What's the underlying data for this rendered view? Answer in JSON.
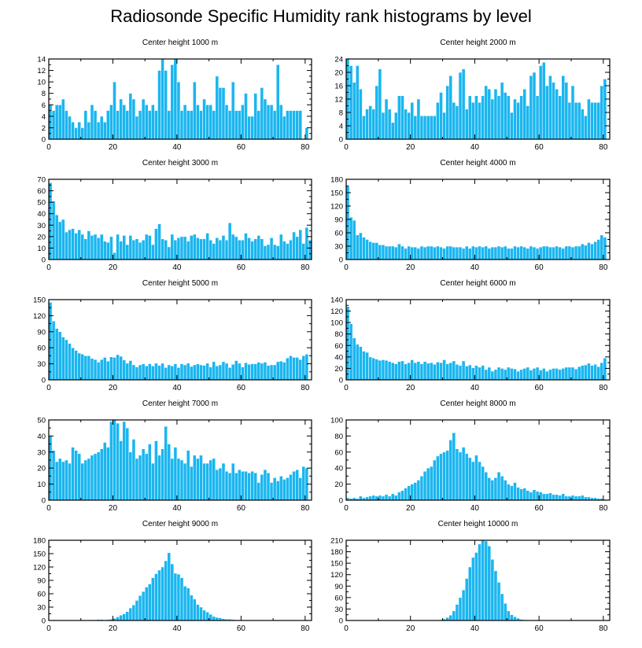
{
  "title": "Radiosonde Specific Humidity rank histograms by level",
  "colors": {
    "bar": "#1ab6f0",
    "bar_edge": "#ffffff",
    "axis": "#000000"
  },
  "chart_data": [
    {
      "type": "bar",
      "title": "Center height 1000 m",
      "xlabel": "",
      "ylabel": "",
      "xlim": [
        0,
        82
      ],
      "ylim": [
        0,
        14
      ],
      "xticks": [
        0,
        20,
        40,
        60,
        80
      ],
      "yticks": [
        0,
        2,
        4,
        6,
        8,
        10,
        12,
        14
      ],
      "values": [
        6,
        5,
        6,
        6,
        7,
        5,
        4,
        3,
        2,
        3,
        2,
        5,
        3,
        6,
        5,
        3,
        4,
        3,
        5,
        6,
        10,
        5,
        7,
        6,
        5,
        8,
        7,
        4,
        5,
        7,
        6,
        5,
        6,
        5,
        12,
        14,
        12,
        5,
        13,
        14,
        10,
        5,
        6,
        5,
        5,
        10,
        6,
        5,
        7,
        6,
        6,
        5,
        11,
        9,
        9,
        6,
        5,
        10,
        5,
        5,
        6,
        8,
        4,
        4,
        8,
        5,
        9,
        7,
        6,
        6,
        5,
        13,
        6,
        4,
        5,
        5,
        5,
        5,
        5,
        0,
        2
      ]
    },
    {
      "type": "bar",
      "title": "Center height 2000 m",
      "xlabel": "",
      "ylabel": "",
      "xlim": [
        0,
        82
      ],
      "ylim": [
        0,
        24
      ],
      "xticks": [
        0,
        20,
        40,
        60,
        80
      ],
      "yticks": [
        0,
        4,
        8,
        12,
        16,
        20,
        24
      ],
      "values": [
        24,
        22,
        17,
        22,
        15,
        7,
        9,
        10,
        9,
        16,
        21,
        8,
        12,
        9,
        5,
        8,
        13,
        13,
        9,
        8,
        11,
        7,
        12,
        7,
        7,
        7,
        7,
        7,
        11,
        14,
        8,
        16,
        19,
        11,
        10,
        20,
        21,
        9,
        13,
        11,
        13,
        11,
        13,
        16,
        15,
        12,
        15,
        13,
        17,
        14,
        13,
        8,
        12,
        11,
        13,
        15,
        10,
        19,
        20,
        13,
        22,
        23,
        16,
        19,
        17,
        15,
        13,
        19,
        17,
        11,
        16,
        11,
        11,
        9,
        7,
        12,
        11,
        11,
        11,
        16,
        18
      ]
    },
    {
      "type": "bar",
      "title": "Center height 3000 m",
      "xlabel": "",
      "ylabel": "",
      "xlim": [
        0,
        82
      ],
      "ylim": [
        0,
        70
      ],
      "xticks": [
        0,
        20,
        40,
        60,
        80
      ],
      "yticks": [
        0,
        10,
        20,
        30,
        40,
        50,
        60,
        70
      ],
      "values": [
        67,
        51,
        39,
        33,
        35,
        24,
        26,
        27,
        23,
        26,
        22,
        18,
        25,
        21,
        22,
        19,
        22,
        16,
        15,
        20,
        6,
        22,
        16,
        21,
        13,
        21,
        17,
        18,
        15,
        17,
        22,
        21,
        13,
        27,
        31,
        18,
        17,
        11,
        22,
        17,
        19,
        20,
        20,
        16,
        21,
        22,
        19,
        18,
        18,
        23,
        17,
        14,
        19,
        17,
        21,
        17,
        32,
        22,
        20,
        17,
        17,
        23,
        19,
        16,
        18,
        21,
        18,
        12,
        13,
        19,
        13,
        12,
        22,
        16,
        14,
        17,
        24,
        20,
        26,
        14,
        28,
        17
      ]
    },
    {
      "type": "bar",
      "title": "Center height 4000 m",
      "xlabel": "",
      "ylabel": "",
      "xlim": [
        0,
        82
      ],
      "ylim": [
        0,
        180
      ],
      "xticks": [
        0,
        20,
        40,
        60,
        80
      ],
      "yticks": [
        0,
        30,
        60,
        90,
        120,
        150,
        180
      ],
      "values": [
        165,
        95,
        88,
        55,
        60,
        50,
        45,
        40,
        38,
        38,
        33,
        33,
        30,
        30,
        30,
        28,
        35,
        30,
        25,
        30,
        28,
        28,
        25,
        30,
        28,
        30,
        30,
        28,
        30,
        28,
        25,
        30,
        30,
        28,
        28,
        28,
        25,
        30,
        25,
        30,
        28,
        30,
        28,
        30,
        25,
        28,
        28,
        30,
        28,
        30,
        25,
        25,
        30,
        28,
        30,
        28,
        25,
        30,
        28,
        25,
        28,
        30,
        30,
        28,
        28,
        30,
        28,
        25,
        30,
        30,
        28,
        30,
        30,
        35,
        32,
        38,
        35,
        40,
        45,
        55,
        50
      ]
    },
    {
      "type": "bar",
      "title": "Center height 5000 m",
      "xlabel": "",
      "ylabel": "",
      "xlim": [
        0,
        82
      ],
      "ylim": [
        0,
        150
      ],
      "xticks": [
        0,
        20,
        40,
        60,
        80
      ],
      "yticks": [
        0,
        30,
        60,
        90,
        120,
        150
      ],
      "values": [
        145,
        110,
        96,
        90,
        80,
        75,
        68,
        60,
        55,
        50,
        48,
        45,
        45,
        40,
        38,
        33,
        38,
        42,
        35,
        43,
        42,
        47,
        44,
        37,
        31,
        36,
        28,
        24,
        28,
        30,
        26,
        30,
        26,
        31,
        27,
        31,
        23,
        28,
        26,
        30,
        23,
        30,
        28,
        31,
        25,
        28,
        30,
        28,
        27,
        31,
        24,
        34,
        26,
        28,
        34,
        31,
        23,
        29,
        36,
        31,
        24,
        32,
        29,
        30,
        30,
        33,
        31,
        33,
        27,
        28,
        28,
        34,
        35,
        33,
        41,
        45,
        42,
        42,
        38,
        45,
        48
      ]
    },
    {
      "type": "bar",
      "title": "Center height 6000 m",
      "xlabel": "",
      "ylabel": "",
      "xlim": [
        0,
        82
      ],
      "ylim": [
        0,
        140
      ],
      "xticks": [
        0,
        20,
        40,
        60,
        80
      ],
      "yticks": [
        0,
        20,
        40,
        60,
        80,
        100,
        120,
        140
      ],
      "values": [
        128,
        98,
        73,
        62,
        58,
        50,
        48,
        40,
        38,
        36,
        34,
        35,
        34,
        32,
        30,
        28,
        32,
        33,
        28,
        30,
        35,
        30,
        32,
        28,
        32,
        29,
        30,
        27,
        31,
        30,
        35,
        28,
        30,
        33,
        27,
        25,
        33,
        24,
        26,
        21,
        25,
        22,
        25,
        18,
        22,
        15,
        18,
        22,
        20,
        18,
        22,
        20,
        19,
        15,
        18,
        20,
        22,
        17,
        20,
        22,
        17,
        20,
        15,
        18,
        20,
        20,
        18,
        20,
        22,
        22,
        22,
        19,
        23,
        25,
        26,
        29,
        25,
        27,
        23,
        30,
        38
      ]
    },
    {
      "type": "bar",
      "title": "Center height 7000 m",
      "xlabel": "",
      "ylabel": "",
      "xlim": [
        0,
        82
      ],
      "ylim": [
        0,
        50
      ],
      "xticks": [
        0,
        20,
        40,
        60,
        80
      ],
      "yticks": [
        0,
        10,
        20,
        30,
        40,
        50
      ],
      "values": [
        40,
        31,
        24,
        26,
        24,
        25,
        23,
        33,
        31,
        29,
        23,
        25,
        26,
        28,
        29,
        30,
        32,
        36,
        33,
        49,
        50,
        48,
        37,
        49,
        45,
        30,
        38,
        26,
        28,
        32,
        29,
        35,
        23,
        37,
        28,
        32,
        46,
        35,
        26,
        33,
        26,
        25,
        23,
        31,
        21,
        28,
        26,
        28,
        23,
        23,
        25,
        26,
        19,
        20,
        23,
        18,
        17,
        23,
        17,
        19,
        18,
        18,
        17,
        18,
        17,
        11,
        16,
        19,
        17,
        11,
        14,
        12,
        15,
        13,
        14,
        16,
        18,
        19,
        14,
        21,
        20
      ]
    },
    {
      "type": "bar",
      "title": "Center height 8000 m",
      "xlabel": "",
      "ylabel": "",
      "xlim": [
        0,
        82
      ],
      "ylim": [
        0,
        100
      ],
      "xticks": [
        0,
        20,
        40,
        60,
        80
      ],
      "yticks": [
        0,
        20,
        40,
        60,
        80,
        100
      ],
      "values": [
        3,
        2,
        3,
        2,
        5,
        3,
        4,
        5,
        6,
        5,
        6,
        5,
        7,
        5,
        8,
        6,
        10,
        12,
        15,
        18,
        20,
        22,
        25,
        30,
        36,
        40,
        42,
        50,
        55,
        58,
        60,
        62,
        75,
        84,
        64,
        60,
        66,
        58,
        53,
        48,
        56,
        48,
        42,
        35,
        28,
        25,
        28,
        35,
        30,
        25,
        20,
        18,
        22,
        16,
        14,
        15,
        12,
        10,
        13,
        11,
        10,
        8,
        8,
        9,
        7,
        7,
        6,
        8,
        5,
        5,
        6,
        5,
        5,
        6,
        4,
        4,
        3,
        3,
        2,
        2,
        1
      ]
    },
    {
      "type": "bar",
      "title": "Center height 9000 m",
      "xlabel": "",
      "ylabel": "",
      "xlim": [
        0,
        82
      ],
      "ylim": [
        0,
        180
      ],
      "xticks": [
        0,
        20,
        40,
        60,
        80
      ],
      "yticks": [
        0,
        30,
        60,
        90,
        120,
        150,
        180
      ],
      "values": [
        0,
        0,
        0,
        0,
        0,
        0,
        0,
        0,
        0,
        0,
        0,
        0,
        1,
        1,
        1,
        2,
        2,
        1,
        2,
        3,
        5,
        8,
        12,
        15,
        20,
        28,
        35,
        45,
        56,
        65,
        75,
        82,
        96,
        105,
        113,
        120,
        134,
        152,
        127,
        106,
        104,
        96,
        77,
        73,
        57,
        48,
        36,
        30,
        23,
        19,
        14,
        9,
        7,
        6,
        4,
        3,
        3,
        2,
        1,
        1,
        1,
        1,
        0,
        0,
        0,
        0,
        0,
        0,
        0,
        0,
        0,
        0,
        0,
        0,
        0,
        0,
        0,
        0,
        0,
        0,
        0
      ]
    },
    {
      "type": "bar",
      "title": "Center height 10000 m",
      "xlabel": "",
      "ylabel": "",
      "xlim": [
        0,
        82
      ],
      "ylim": [
        0,
        210
      ],
      "xticks": [
        0,
        20,
        40,
        60,
        80
      ],
      "yticks": [
        0,
        30,
        60,
        90,
        120,
        150,
        180,
        210
      ],
      "values": [
        0,
        0,
        0,
        0,
        0,
        0,
        0,
        0,
        0,
        0,
        0,
        0,
        0,
        0,
        0,
        0,
        0,
        0,
        0,
        0,
        0,
        0,
        0,
        0,
        0,
        0,
        0,
        0,
        1,
        2,
        4,
        8,
        14,
        25,
        42,
        60,
        80,
        110,
        140,
        165,
        178,
        200,
        210,
        208,
        195,
        160,
        130,
        100,
        70,
        45,
        25,
        15,
        10,
        6,
        3,
        2,
        1,
        1,
        0,
        0,
        0,
        0,
        0,
        0,
        0,
        0,
        0,
        0,
        0,
        0,
        0,
        0,
        0,
        0,
        0,
        0,
        0,
        0,
        0,
        0,
        0
      ]
    }
  ]
}
